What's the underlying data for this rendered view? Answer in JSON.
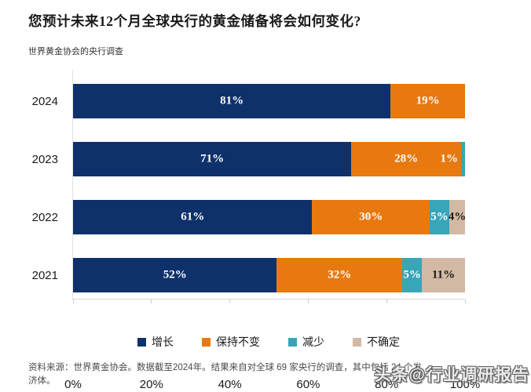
{
  "header": {
    "title": "您预计未来12个月全球央行的黄金储备将会如何变化?",
    "subtitle": "世界黄金协会的央行调查"
  },
  "chart_data": {
    "type": "bar",
    "orientation": "horizontal",
    "stacked": true,
    "categories": [
      "2024",
      "2023",
      "2022",
      "2021"
    ],
    "series": [
      {
        "key": "increase",
        "name": "增长",
        "color": "#0e316b",
        "label_color": "#ffffff",
        "values": [
          81,
          71,
          61,
          52
        ]
      },
      {
        "key": "unchanged",
        "name": "保持不变",
        "color": "#e7790f",
        "label_color": "#ffffff",
        "values": [
          19,
          28,
          30,
          32
        ]
      },
      {
        "key": "decrease",
        "name": "减少",
        "color": "#39a5b9",
        "label_color": "#ffffff",
        "values": [
          0,
          1,
          5,
          5
        ]
      },
      {
        "key": "uncertain",
        "name": "不确定",
        "color": "#d2b9a4",
        "label_color": "#1a1a1a",
        "values": [
          0,
          0,
          4,
          11
        ]
      }
    ],
    "value_label_suffix": "%",
    "xlim": [
      0,
      100
    ],
    "x_ticks": [
      "0%",
      "20%",
      "40%",
      "60%",
      "80%",
      "100%"
    ],
    "grid": false,
    "legend_position": "bottom"
  },
  "footer": {
    "line1": "资料来源：世界黄金协会。数据截至2024年。结果来自对全球 69 家央行的调查，其中包括 24 个发",
    "line2": "济体。"
  },
  "watermark": "头条@行业调研报告"
}
